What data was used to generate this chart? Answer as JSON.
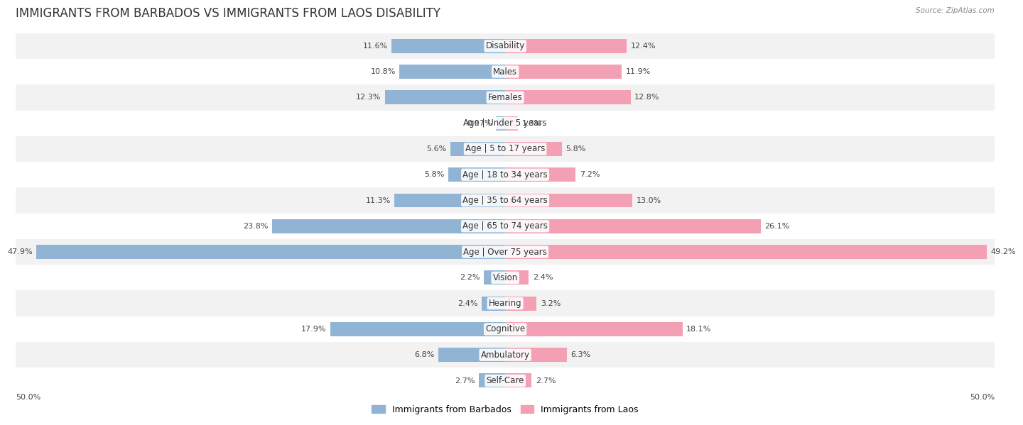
{
  "title": "IMMIGRANTS FROM BARBADOS VS IMMIGRANTS FROM LAOS DISABILITY",
  "source": "Source: ZipAtlas.com",
  "categories": [
    "Disability",
    "Males",
    "Females",
    "Age | Under 5 years",
    "Age | 5 to 17 years",
    "Age | 18 to 34 years",
    "Age | 35 to 64 years",
    "Age | 65 to 74 years",
    "Age | Over 75 years",
    "Vision",
    "Hearing",
    "Cognitive",
    "Ambulatory",
    "Self-Care"
  ],
  "barbados_values": [
    11.6,
    10.8,
    12.3,
    0.97,
    5.6,
    5.8,
    11.3,
    23.8,
    47.9,
    2.2,
    2.4,
    17.9,
    6.8,
    2.7
  ],
  "laos_values": [
    12.4,
    11.9,
    12.8,
    1.3,
    5.8,
    7.2,
    13.0,
    26.1,
    49.2,
    2.4,
    3.2,
    18.1,
    6.3,
    2.7
  ],
  "barbados_color": "#92b4d4",
  "laos_color": "#f4a0b4",
  "barbados_label": "Immigrants from Barbados",
  "laos_label": "Immigrants from Laos",
  "max_value": 50.0,
  "bar_height": 0.55,
  "row_bg_light": "#f2f2f2",
  "row_bg_dark": "#e8e8e8",
  "title_fontsize": 12,
  "label_fontsize": 8.5,
  "value_fontsize": 8,
  "axis_fontsize": 8
}
